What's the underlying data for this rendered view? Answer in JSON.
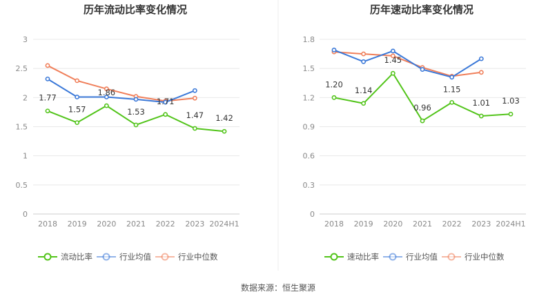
{
  "source": "数据来源：恒生聚源",
  "chart_data": [
    {
      "type": "line",
      "title": "历年流动比率变化情况",
      "categories": [
        "2018",
        "2019",
        "2020",
        "2021",
        "2022",
        "2023",
        "2024H1"
      ],
      "ylim": [
        0,
        3
      ],
      "yticks": [
        "0",
        "0.5",
        "1",
        "1.5",
        "2",
        "2.5",
        "3"
      ],
      "ytick_values": [
        0,
        0.5,
        1,
        1.5,
        2,
        2.5,
        3
      ],
      "series": [
        {
          "name": "流动比率",
          "color": "#52c41a",
          "values": [
            1.77,
            1.57,
            1.86,
            1.53,
            1.71,
            1.47,
            1.42
          ],
          "labels": [
            "1.77",
            "1.57",
            "1.86",
            "1.53",
            "1.71",
            "1.47",
            "1.42"
          ]
        },
        {
          "name": "行业均值",
          "color": "#3a78d8",
          "values": [
            2.32,
            2.01,
            2.01,
            1.97,
            1.92,
            2.12,
            null
          ]
        },
        {
          "name": "行业中位数",
          "color": "#f07f5a",
          "values": [
            2.55,
            2.29,
            2.15,
            2.02,
            1.94,
            1.99,
            null
          ]
        }
      ]
    },
    {
      "type": "line",
      "title": "历年速动比率变化情况",
      "categories": [
        "2018",
        "2019",
        "2020",
        "2021",
        "2022",
        "2023",
        "2024H1"
      ],
      "ylim": [
        0,
        1.8
      ],
      "yticks": [
        "0",
        "0.3",
        "0.6",
        "0.9",
        "1.2",
        "1.5",
        "1.8"
      ],
      "ytick_values": [
        0,
        0.3,
        0.6,
        0.9,
        1.2,
        1.5,
        1.8
      ],
      "series": [
        {
          "name": "速动比率",
          "color": "#52c41a",
          "values": [
            1.2,
            1.14,
            1.45,
            0.96,
            1.15,
            1.01,
            1.03
          ],
          "labels": [
            "1.20",
            "1.14",
            "1.45",
            "0.96",
            "1.15",
            "1.01",
            "1.03"
          ]
        },
        {
          "name": "行业均值",
          "color": "#3a78d8",
          "values": [
            1.69,
            1.57,
            1.68,
            1.49,
            1.41,
            1.6,
            null
          ]
        },
        {
          "name": "行业中位数",
          "color": "#f07f5a",
          "values": [
            1.67,
            1.65,
            1.63,
            1.51,
            1.42,
            1.46,
            null
          ]
        }
      ]
    }
  ]
}
